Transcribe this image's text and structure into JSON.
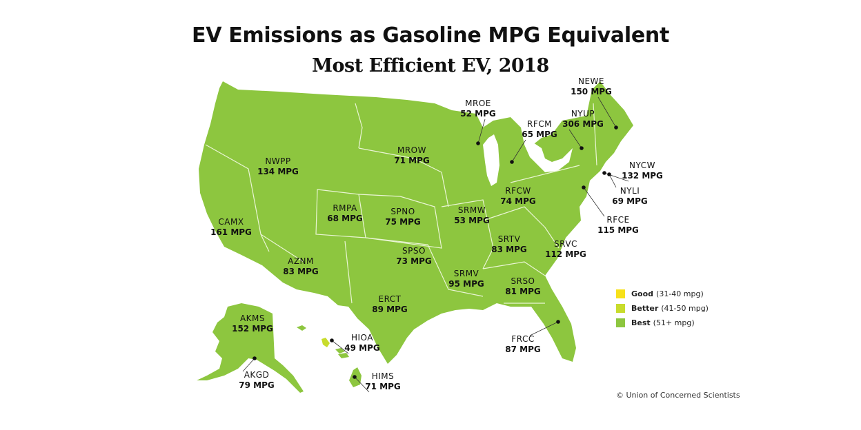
{
  "title": "EV Emissions as Gasoline MPG Equivalent",
  "subtitle": "Most Efficient EV, 2018",
  "colors": {
    "good": "#f7e11a",
    "better": "#c8dc2c",
    "best": "#8dc63f",
    "border": "#e8f3d0",
    "text": "#111111"
  },
  "legend": [
    {
      "label": "Good",
      "range": "(31-40 mpg)",
      "color_key": "good"
    },
    {
      "label": "Better",
      "range": "(41-50 mpg)",
      "color_key": "better"
    },
    {
      "label": "Best",
      "range": "(51+ mpg)",
      "color_key": "best"
    }
  ],
  "regions": [
    {
      "code": "NWPP",
      "value": "134 MPG",
      "mpg": 134,
      "category": "best"
    },
    {
      "code": "MROW",
      "value": "71 MPG",
      "mpg": 71,
      "category": "best"
    },
    {
      "code": "MROE",
      "value": "52 MPG",
      "mpg": 52,
      "category": "best"
    },
    {
      "code": "RFCM",
      "value": "65 MPG",
      "mpg": 65,
      "category": "best"
    },
    {
      "code": "NYUP",
      "value": "306 MPG",
      "mpg": 306,
      "category": "best"
    },
    {
      "code": "NEWE",
      "value": "150 MPG",
      "mpg": 150,
      "category": "best"
    },
    {
      "code": "NYCW",
      "value": "132 MPG",
      "mpg": 132,
      "category": "best"
    },
    {
      "code": "NYLI",
      "value": "69 MPG",
      "mpg": 69,
      "category": "best"
    },
    {
      "code": "RFCE",
      "value": "115 MPG",
      "mpg": 115,
      "category": "best"
    },
    {
      "code": "RFCW",
      "value": "74 MPG",
      "mpg": 74,
      "category": "best"
    },
    {
      "code": "RMPA",
      "value": "68 MPG",
      "mpg": 68,
      "category": "best"
    },
    {
      "code": "SPNO",
      "value": "75 MPG",
      "mpg": 75,
      "category": "best"
    },
    {
      "code": "SRMW",
      "value": "53 MPG",
      "mpg": 53,
      "category": "best"
    },
    {
      "code": "CAMX",
      "value": "161 MPG",
      "mpg": 161,
      "category": "best"
    },
    {
      "code": "AZNM",
      "value": "83 MPG",
      "mpg": 83,
      "category": "best"
    },
    {
      "code": "SPSO",
      "value": "73 MPG",
      "mpg": 73,
      "category": "best"
    },
    {
      "code": "SRTV",
      "value": "83 MPG",
      "mpg": 83,
      "category": "best"
    },
    {
      "code": "SRVC",
      "value": "112 MPG",
      "mpg": 112,
      "category": "best"
    },
    {
      "code": "SRMV",
      "value": "95 MPG",
      "mpg": 95,
      "category": "best"
    },
    {
      "code": "ERCT",
      "value": "89 MPG",
      "mpg": 89,
      "category": "best"
    },
    {
      "code": "SRSO",
      "value": "81 MPG",
      "mpg": 81,
      "category": "best"
    },
    {
      "code": "FRCC",
      "value": "87 MPG",
      "mpg": 87,
      "category": "best"
    },
    {
      "code": "AKMS",
      "value": "152 MPG",
      "mpg": 152,
      "category": "best"
    },
    {
      "code": "AKGD",
      "value": "79 MPG",
      "mpg": 79,
      "category": "best"
    },
    {
      "code": "HIOA",
      "value": "49 MPG",
      "mpg": 49,
      "category": "better"
    },
    {
      "code": "HIMS",
      "value": "71 MPG",
      "mpg": 71,
      "category": "best"
    }
  ],
  "credit": "© Union of Concerned Scientists"
}
